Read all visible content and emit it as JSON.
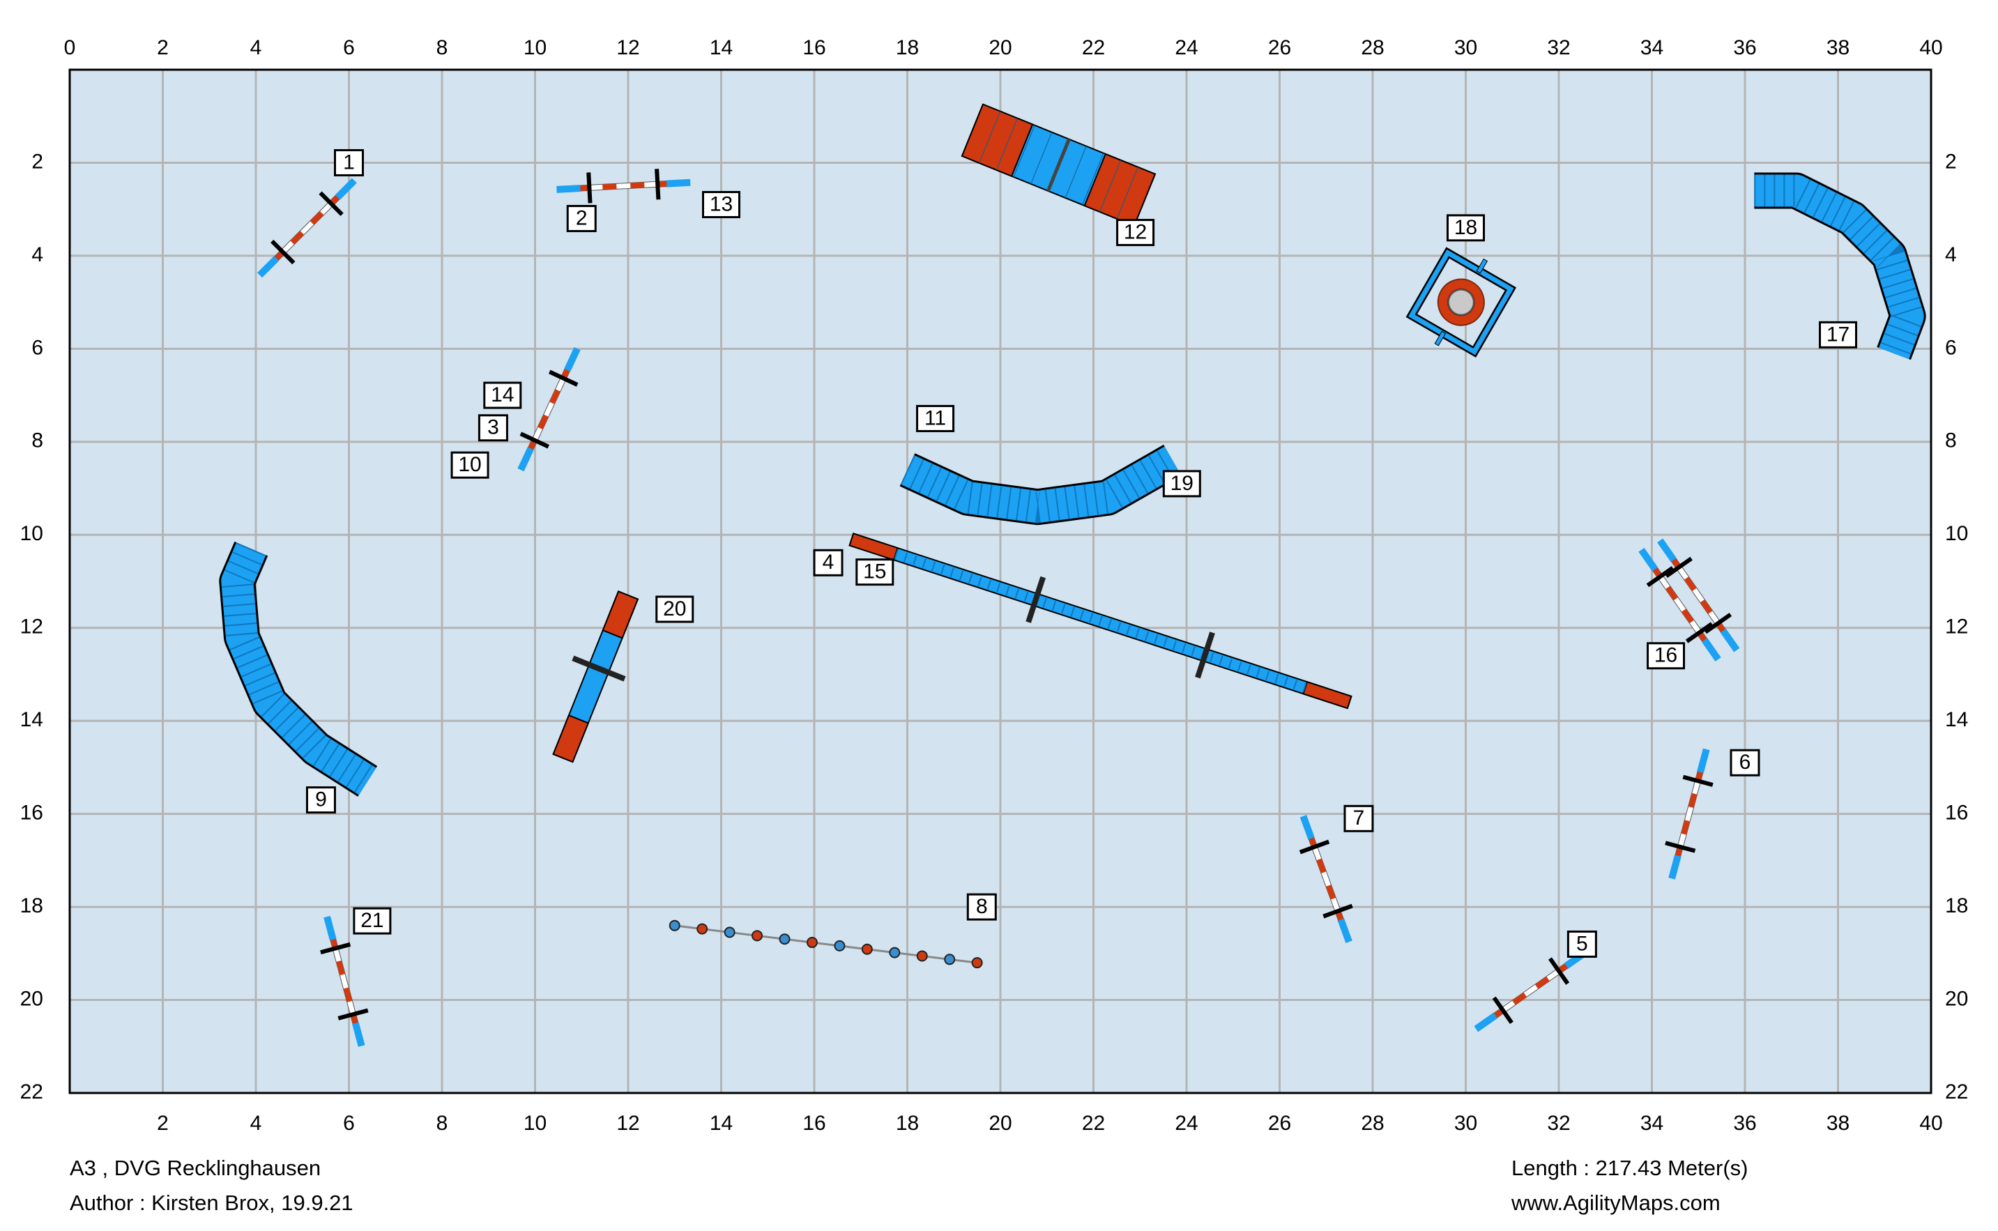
{
  "course": {
    "title": "A3 , DVG Recklinghausen",
    "author": "Author : Kirsten Brox, 19.9.21",
    "length": "Length : 217.43 Meter(s)",
    "website": "www.AgilityMaps.com"
  },
  "field": {
    "width_m": 40,
    "height_m": 22,
    "grid_step_m": 2
  },
  "axes": {
    "x_top_ticks": [
      "0",
      "2",
      "4",
      "6",
      "8",
      "10",
      "12",
      "14",
      "16",
      "18",
      "20",
      "22",
      "24",
      "26",
      "28",
      "30",
      "32",
      "34",
      "36",
      "38",
      "40"
    ],
    "x_bottom_ticks": [
      "2",
      "4",
      "6",
      "8",
      "10",
      "12",
      "14",
      "16",
      "18",
      "20",
      "22",
      "24",
      "26",
      "28",
      "30",
      "32",
      "34",
      "36",
      "38",
      "40"
    ],
    "y_left_ticks": [
      "2",
      "4",
      "6",
      "8",
      "10",
      "12",
      "14",
      "16",
      "18",
      "20",
      "22"
    ],
    "y_right_ticks": [
      "2",
      "4",
      "6",
      "8",
      "10",
      "12",
      "14",
      "16",
      "18",
      "20",
      "22"
    ]
  },
  "colors": {
    "field": "#d3e4f0",
    "grid": "#b4b4b4",
    "equipment_blue": "#1da1f2",
    "contact_red": "#d13a10",
    "outline": "#000000"
  },
  "obstacle_numbers": [
    {
      "label": "1",
      "x": 6.0,
      "y": 2.0
    },
    {
      "label": "2",
      "x": 11.0,
      "y": 3.2
    },
    {
      "label": "13",
      "x": 14.0,
      "y": 2.9
    },
    {
      "label": "12",
      "x": 22.9,
      "y": 3.5
    },
    {
      "label": "18",
      "x": 30.0,
      "y": 3.4
    },
    {
      "label": "17",
      "x": 38.0,
      "y": 5.7
    },
    {
      "label": "14",
      "x": 9.3,
      "y": 7.0
    },
    {
      "label": "3",
      "x": 9.1,
      "y": 7.7
    },
    {
      "label": "10",
      "x": 8.6,
      "y": 8.5
    },
    {
      "label": "11",
      "x": 18.6,
      "y": 7.5
    },
    {
      "label": "19",
      "x": 23.9,
      "y": 8.9
    },
    {
      "label": "4",
      "x": 16.3,
      "y": 10.6
    },
    {
      "label": "15",
      "x": 17.3,
      "y": 10.8
    },
    {
      "label": "20",
      "x": 13.0,
      "y": 11.6
    },
    {
      "label": "16",
      "x": 34.3,
      "y": 12.6
    },
    {
      "label": "9",
      "x": 5.4,
      "y": 15.7
    },
    {
      "label": "6",
      "x": 36.0,
      "y": 14.9
    },
    {
      "label": "7",
      "x": 27.7,
      "y": 16.1
    },
    {
      "label": "8",
      "x": 19.6,
      "y": 18.0
    },
    {
      "label": "21",
      "x": 6.5,
      "y": 18.3
    },
    {
      "label": "5",
      "x": 32.5,
      "y": 18.8
    }
  ],
  "jumps": [
    {
      "x": 5.1,
      "y": 3.4,
      "angle": -45
    },
    {
      "x": 11.9,
      "y": 2.5,
      "angle": -3
    },
    {
      "x": 10.3,
      "y": 7.3,
      "angle": -65
    },
    {
      "x": 34.6,
      "y": 11.5,
      "angle": 55
    },
    {
      "x": 35.0,
      "y": 11.3,
      "angle": 55
    },
    {
      "x": 34.8,
      "y": 16.0,
      "angle": -75
    },
    {
      "x": 27.0,
      "y": 17.4,
      "angle": 70
    },
    {
      "x": 31.4,
      "y": 19.8,
      "angle": -35
    },
    {
      "x": 5.9,
      "y": 19.6,
      "angle": 75
    }
  ],
  "tunnels": [
    {
      "path": [
        [
          3.9,
          10.3
        ],
        [
          3.6,
          11.0
        ],
        [
          3.7,
          12.2
        ],
        [
          4.3,
          13.6
        ],
        [
          5.3,
          14.6
        ],
        [
          6.4,
          15.3
        ]
      ]
    },
    {
      "path": [
        [
          18.0,
          8.6
        ],
        [
          19.3,
          9.2
        ],
        [
          20.8,
          9.4
        ],
        [
          22.3,
          9.2
        ],
        [
          23.7,
          8.4
        ]
      ]
    },
    {
      "path": [
        [
          36.2,
          2.6
        ],
        [
          37.1,
          2.6
        ],
        [
          38.3,
          3.2
        ],
        [
          39.1,
          4.0
        ],
        [
          39.5,
          5.3
        ],
        [
          39.2,
          6.1
        ]
      ]
    }
  ],
  "contacts": [
    {
      "type": "dogwalk",
      "x1": 16.8,
      "y1": 10.1,
      "x2": 27.5,
      "y2": 13.6,
      "contact_len": 1.0,
      "supports": [
        0.37,
        0.71
      ]
    },
    {
      "type": "aframe",
      "x1": 19.4,
      "y1": 1.3,
      "x2": 23.1,
      "y2": 2.8,
      "contact_len": 1.15,
      "width": 1.2
    },
    {
      "type": "seesaw",
      "x1": 12.0,
      "y1": 11.3,
      "x2": 10.6,
      "y2": 14.8,
      "contact_len": 0.9,
      "support": 0.45
    }
  ],
  "weaves": {
    "count": 12,
    "x1": 13.0,
    "y1": 18.4,
    "x2": 19.5,
    "y2": 19.2
  },
  "tire": {
    "x": 29.9,
    "y": 5.0,
    "angle": 30
  }
}
